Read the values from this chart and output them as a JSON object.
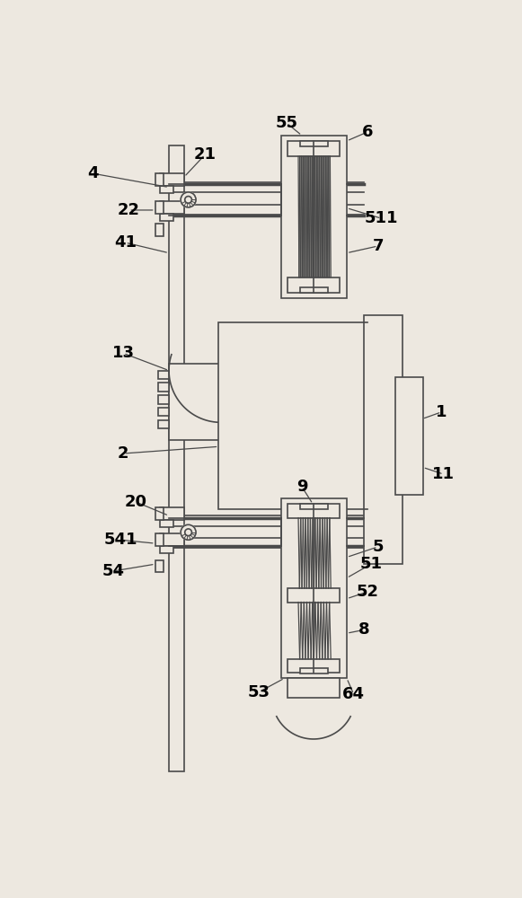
{
  "bg_color": "#ede8e0",
  "line_color": "#4a4a4a",
  "lw": 1.2,
  "figsize": [
    5.81,
    10.0
  ],
  "dpi": 100,
  "label_fontsize": 13
}
